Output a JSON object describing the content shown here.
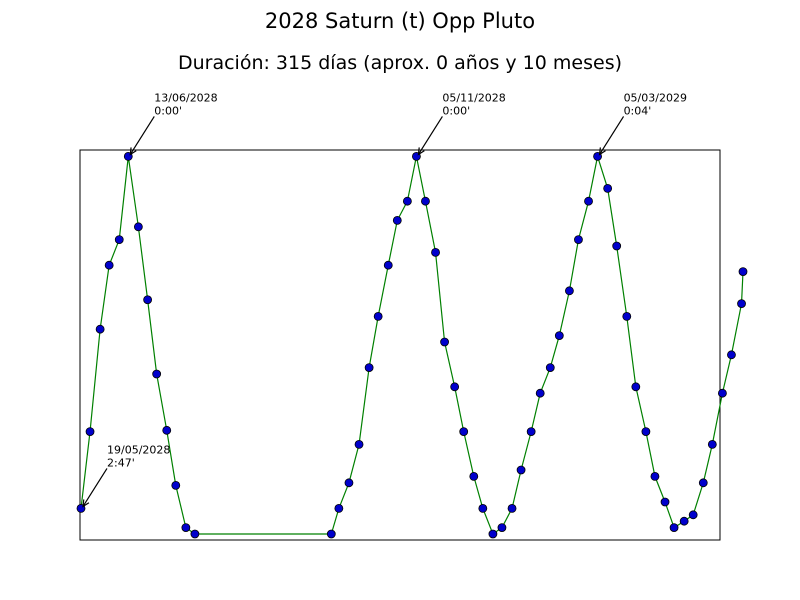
{
  "chart_data": {
    "type": "line",
    "title": "2028 Saturn (t) Opp Pluto",
    "subtitle": "Duración: 315 días (aprox. 0 años y 10 meses)",
    "xlabel": "",
    "ylabel": "",
    "grid": false,
    "line_color": "#008000",
    "marker_color": "#0000cc",
    "xlim": [
      0,
      315
    ],
    "ylim": [
      0,
      3.0
    ],
    "series": [
      {
        "points": [
          {
            "x": 0,
            "y": 2.8
          },
          {
            "x": 4.3,
            "y": 2.2
          },
          {
            "x": 9.1,
            "y": 1.4
          },
          {
            "x": 13.4,
            "y": 0.9
          },
          {
            "x": 18.2,
            "y": 0.7
          },
          {
            "x": 22.5,
            "y": 0.05
          },
          {
            "x": 27.3,
            "y": 0.6
          },
          {
            "x": 31.7,
            "y": 1.17
          },
          {
            "x": 36.0,
            "y": 1.75
          },
          {
            "x": 40.8,
            "y": 2.19
          },
          {
            "x": 45.1,
            "y": 2.62
          },
          {
            "x": 49.9,
            "y": 2.95
          },
          {
            "x": 54.2,
            "y": 3.0
          },
          {
            "x": 119.1,
            "y": 3.0
          },
          {
            "x": 122.7,
            "y": 2.8
          },
          {
            "x": 127.5,
            "y": 2.6
          },
          {
            "x": 132.3,
            "y": 2.3
          },
          {
            "x": 137.1,
            "y": 1.7
          },
          {
            "x": 141.4,
            "y": 1.3
          },
          {
            "x": 146.2,
            "y": 0.9
          },
          {
            "x": 150.5,
            "y": 0.55
          },
          {
            "x": 155.3,
            "y": 0.4
          },
          {
            "x": 159.6,
            "y": 0.05
          },
          {
            "x": 163.9,
            "y": 0.4
          },
          {
            "x": 168.7,
            "y": 0.8
          },
          {
            "x": 173.0,
            "y": 1.5
          },
          {
            "x": 177.8,
            "y": 1.85
          },
          {
            "x": 182.1,
            "y": 2.2
          },
          {
            "x": 186.9,
            "y": 2.55
          },
          {
            "x": 191.2,
            "y": 2.8
          },
          {
            "x": 196.0,
            "y": 3.0
          },
          {
            "x": 200.3,
            "y": 2.95
          },
          {
            "x": 205.1,
            "y": 2.8
          },
          {
            "x": 209.4,
            "y": 2.5
          },
          {
            "x": 214.2,
            "y": 2.2
          },
          {
            "x": 218.5,
            "y": 1.9
          },
          {
            "x": 223.3,
            "y": 1.7
          },
          {
            "x": 227.6,
            "y": 1.45
          },
          {
            "x": 232.4,
            "y": 1.1
          },
          {
            "x": 236.7,
            "y": 0.7
          },
          {
            "x": 241.5,
            "y": 0.4
          },
          {
            "x": 245.8,
            "y": 0.05
          },
          {
            "x": 250.6,
            "y": 0.3
          },
          {
            "x": 254.9,
            "y": 0.75
          },
          {
            "x": 259.7,
            "y": 1.3
          },
          {
            "x": 264.0,
            "y": 1.85
          },
          {
            "x": 268.8,
            "y": 2.2
          },
          {
            "x": 273.1,
            "y": 2.55
          },
          {
            "x": 277.9,
            "y": 2.75
          },
          {
            "x": 282.2,
            "y": 2.95
          },
          {
            "x": 287.0,
            "y": 2.9
          },
          {
            "x": 291.3,
            "y": 2.85
          },
          {
            "x": 296.1,
            "y": 2.6
          },
          {
            "x": 300.4,
            "y": 2.3
          },
          {
            "x": 305.2,
            "y": 1.9
          },
          {
            "x": 309.5,
            "y": 1.6
          },
          {
            "x": 314.3,
            "y": 1.2
          },
          {
            "x": 315.0,
            "y": 0.95
          }
        ]
      }
    ],
    "annotations": [
      {
        "date": "19/05/2028",
        "value": "2:47'",
        "x": 0,
        "y": 2.8
      },
      {
        "date": "13/06/2028",
        "value": "0:00'",
        "x": 22.5,
        "y": 0.05
      },
      {
        "date": "05/11/2028",
        "value": "0:00'",
        "x": 159.6,
        "y": 0.05
      },
      {
        "date": "05/03/2029",
        "value": "0:04'",
        "x": 245.8,
        "y": 0.05
      }
    ]
  }
}
